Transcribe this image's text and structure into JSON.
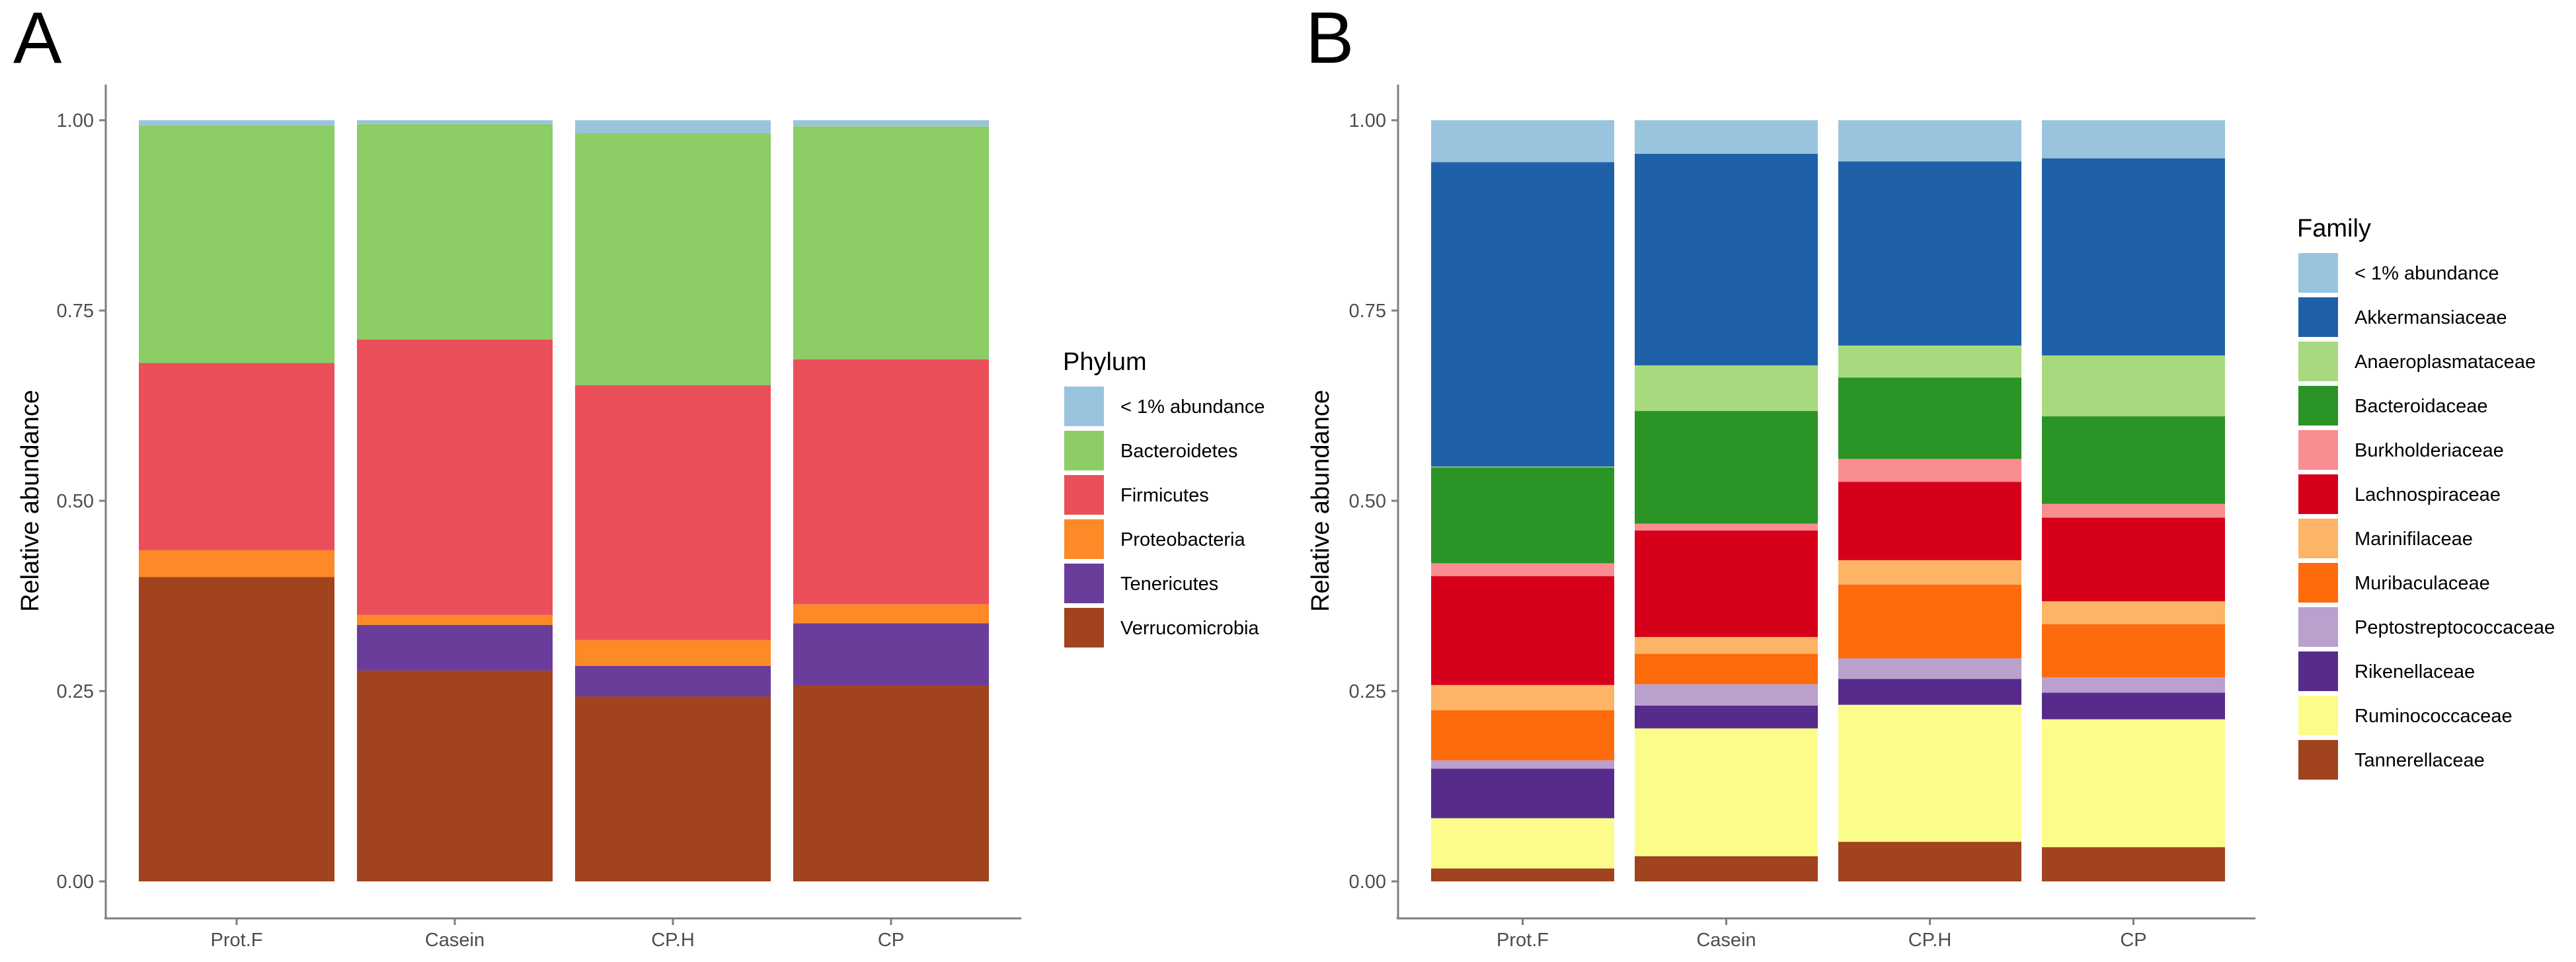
{
  "chart_data": [
    {
      "type": "bar",
      "stacked": true,
      "panel_label": "A",
      "categories": [
        "Prot.F",
        "Casein",
        "CP.H",
        "CP"
      ],
      "ylabel": "Relative abundance",
      "xlabel": "",
      "ylim": [
        0,
        1
      ],
      "yticks": [
        "0.00",
        "0.25",
        "0.50",
        "0.75",
        "1.00"
      ],
      "ytick_values": [
        0,
        0.25,
        0.5,
        0.75,
        1.0
      ],
      "legend_title": "Phylum",
      "series": [
        {
          "name": "Verrucomicrobia",
          "color": "#a0431e",
          "values": [
            0.4,
            0.277,
            0.243,
            0.257
          ]
        },
        {
          "name": "Tenericutes",
          "color": "#6a3d9a",
          "values": [
            0.0,
            0.06,
            0.04,
            0.082
          ]
        },
        {
          "name": "Proteobacteria",
          "color": "#fd8a26",
          "values": [
            0.035,
            0.013,
            0.034,
            0.025
          ]
        },
        {
          "name": "Firmicutes",
          "color": "#eb4f59",
          "values": [
            0.246,
            0.362,
            0.335,
            0.322
          ]
        },
        {
          "name": "Bacteroidetes",
          "color": "#8ccd66",
          "values": [
            0.312,
            0.283,
            0.331,
            0.306
          ]
        },
        {
          "name": "< 1% abundance",
          "color": "#9ac4dd",
          "values": [
            0.007,
            0.005,
            0.017,
            0.008
          ]
        }
      ],
      "legend_order": [
        "< 1% abundance",
        "Bacteroidetes",
        "Firmicutes",
        "Proteobacteria",
        "Tenericutes",
        "Verrucomicrobia"
      ]
    },
    {
      "type": "bar",
      "stacked": true,
      "panel_label": "B",
      "categories": [
        "Prot.F",
        "Casein",
        "CP.H",
        "CP"
      ],
      "ylabel": "Relative abundance",
      "xlabel": "",
      "ylim": [
        0,
        1
      ],
      "yticks": [
        "0.00",
        "0.25",
        "0.50",
        "0.75",
        "1.00"
      ],
      "ytick_values": [
        0,
        0.25,
        0.5,
        0.75,
        1.0
      ],
      "legend_title": "Family",
      "series": [
        {
          "name": "Tannerellaceae",
          "color": "#a0431e",
          "values": [
            0.017,
            0.033,
            0.052,
            0.045
          ]
        },
        {
          "name": "Ruminococcaceae",
          "color": "#fcfc8b",
          "values": [
            0.066,
            0.168,
            0.18,
            0.168
          ]
        },
        {
          "name": "Rikenellaceae",
          "color": "#572b8b",
          "values": [
            0.065,
            0.03,
            0.034,
            0.035
          ]
        },
        {
          "name": "Peptostreptococcaceae",
          "color": "#b9a0cd",
          "values": [
            0.011,
            0.028,
            0.027,
            0.02
          ]
        },
        {
          "name": "Muribaculaceae",
          "color": "#fd6b0c",
          "values": [
            0.066,
            0.04,
            0.097,
            0.07
          ]
        },
        {
          "name": "Marinifilaceae",
          "color": "#fdb466",
          "values": [
            0.033,
            0.022,
            0.032,
            0.03
          ]
        },
        {
          "name": "Lachnospiraceae",
          "color": "#d7001b",
          "values": [
            0.143,
            0.14,
            0.103,
            0.11
          ]
        },
        {
          "name": "Burkholderiaceae",
          "color": "#f98d91",
          "values": [
            0.017,
            0.009,
            0.03,
            0.018
          ]
        },
        {
          "name": "Bacteroidaceae",
          "color": "#2b9426",
          "values": [
            0.126,
            0.148,
            0.107,
            0.115
          ]
        },
        {
          "name": "Anaeroplasmataceae",
          "color": "#a7da7e",
          "values": [
            0.001,
            0.06,
            0.042,
            0.08
          ]
        },
        {
          "name": "Akkermansiaceae",
          "color": "#1f61a8",
          "values": [
            0.4,
            0.278,
            0.242,
            0.259
          ]
        },
        {
          "name": "< 1% abundance",
          "color": "#9ac4dd",
          "values": [
            0.055,
            0.044,
            0.054,
            0.05
          ]
        }
      ],
      "legend_order": [
        "< 1% abundance",
        "Akkermansiaceae",
        "Anaeroplasmataceae",
        "Bacteroidaceae",
        "Burkholderiaceae",
        "Lachnospiraceae",
        "Marinifilaceae",
        "Muribaculaceae",
        "Peptostreptococcaceae",
        "Rikenellaceae",
        "Ruminococcaceae",
        "Tannerellaceae"
      ]
    }
  ]
}
